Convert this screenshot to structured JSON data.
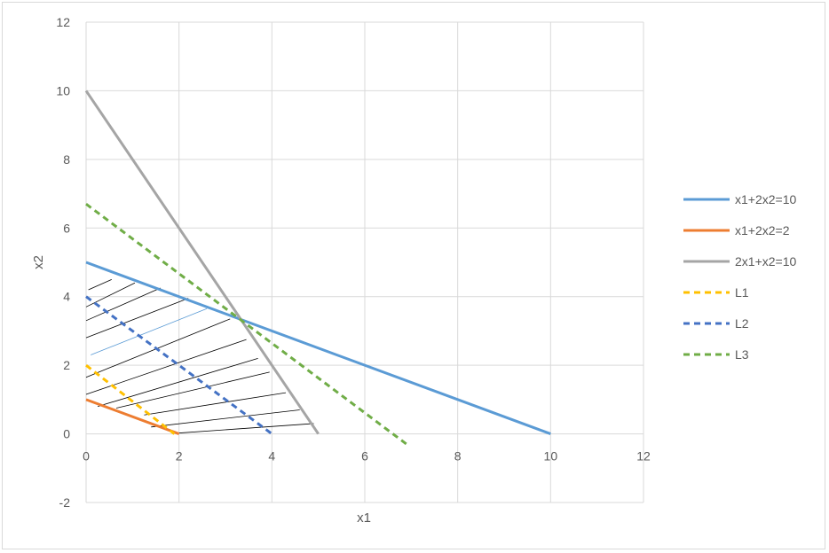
{
  "chart_data": {
    "type": "line",
    "xlabel": "x1",
    "ylabel": "x2",
    "xlim": [
      0,
      12
    ],
    "ylim": [
      -2,
      12
    ],
    "x_ticks": [
      0,
      2,
      4,
      6,
      8,
      10,
      12
    ],
    "y_ticks": [
      -2,
      0,
      2,
      4,
      6,
      8,
      10,
      12
    ],
    "grid": true,
    "legend_position": "right",
    "series": [
      {
        "name": "x1+2x2=10",
        "color": "#5b9bd5",
        "dashed": false,
        "points": [
          [
            0,
            5
          ],
          [
            10,
            0
          ]
        ]
      },
      {
        "name": "x1+2x2=2",
        "color": "#ed7d31",
        "dashed": false,
        "points": [
          [
            0,
            1
          ],
          [
            2,
            0
          ]
        ]
      },
      {
        "name": "2x1+x2=10",
        "color": "#a5a5a5",
        "dashed": false,
        "points": [
          [
            0,
            10
          ],
          [
            5,
            0
          ]
        ]
      },
      {
        "name": "L1",
        "color": "#ffc000",
        "dashed": true,
        "points": [
          [
            0,
            2
          ],
          [
            1.9,
            0
          ]
        ]
      },
      {
        "name": "L2",
        "color": "#4472c4",
        "dashed": true,
        "points": [
          [
            0,
            4
          ],
          [
            4,
            0
          ]
        ]
      },
      {
        "name": "L3",
        "color": "#70ad47",
        "dashed": true,
        "points": [
          [
            0,
            6.7
          ],
          [
            6.9,
            -0.3
          ]
        ]
      }
    ],
    "hatch_region": {
      "description_visible": false,
      "lines": [
        [
          [
            0.05,
            4.2
          ],
          [
            0.55,
            4.5
          ]
        ],
        [
          [
            0.0,
            3.7
          ],
          [
            1.05,
            4.4
          ]
        ],
        [
          [
            0.0,
            3.3
          ],
          [
            1.6,
            4.25
          ]
        ],
        [
          [
            0.0,
            2.8
          ],
          [
            2.2,
            3.95
          ]
        ],
        [
          [
            0.1,
            2.3
          ],
          [
            2.6,
            3.65
          ],
          "#5b9bd5"
        ],
        [
          [
            0.0,
            1.65
          ],
          [
            3.1,
            3.35
          ]
        ],
        [
          [
            0.0,
            1.15
          ],
          [
            3.45,
            2.75
          ]
        ],
        [
          [
            0.25,
            0.8
          ],
          [
            3.7,
            2.2
          ]
        ],
        [
          [
            0.65,
            0.75
          ],
          [
            3.95,
            1.8
          ]
        ],
        [
          [
            1.25,
            0.55
          ],
          [
            4.3,
            1.2
          ]
        ],
        [
          [
            1.4,
            0.2
          ],
          [
            4.6,
            0.7
          ]
        ],
        [
          [
            1.95,
            0.02
          ],
          [
            4.9,
            0.3
          ]
        ]
      ]
    }
  }
}
